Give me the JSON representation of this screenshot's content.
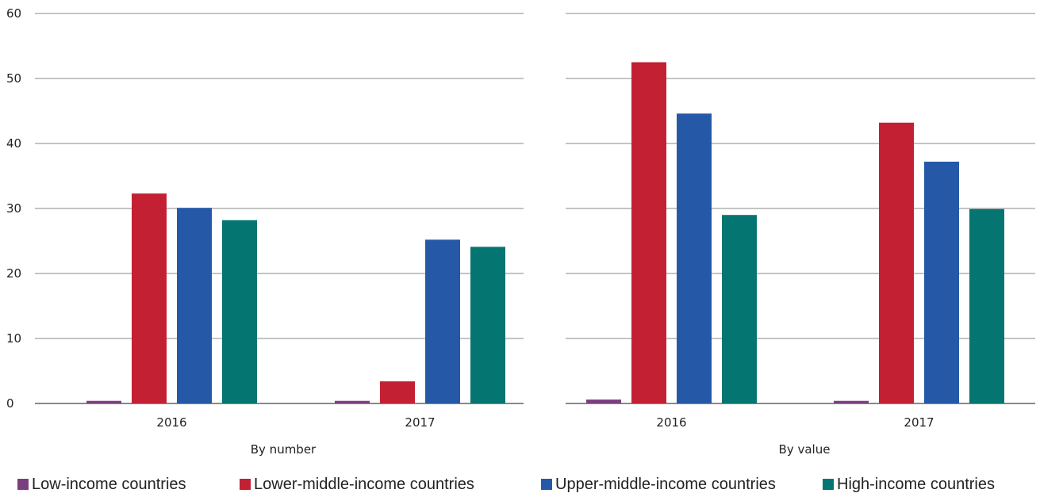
{
  "chart_data": {
    "type": "bar",
    "ylim": [
      0,
      60
    ],
    "yticks": [
      "0",
      "10",
      "20",
      "30",
      "40",
      "50",
      "60"
    ],
    "categories": [
      "2016",
      "2017"
    ],
    "colors": {
      "Low-income countries": "#7a3f7f",
      "Lower-middle-income countries": "#c32034",
      "Upper-middle-income countries": "#2559a7",
      "High-income countries": "#057571"
    },
    "panels": [
      {
        "label": "By number",
        "series": [
          {
            "name": "Low-income countries",
            "values": [
              0.4,
              0.4
            ]
          },
          {
            "name": "Lower-middle-income countries",
            "values": [
              32.3,
              3.4
            ]
          },
          {
            "name": "Upper-middle-income countries",
            "values": [
              30.1,
              25.2
            ]
          },
          {
            "name": "High-income countries",
            "values": [
              28.2,
              24.1
            ]
          }
        ]
      },
      {
        "label": "By value",
        "series": [
          {
            "name": "Low-income countries",
            "values": [
              0.6,
              0.4
            ]
          },
          {
            "name": "Lower-middle-income countries",
            "values": [
              52.5,
              43.2
            ]
          },
          {
            "name": "Upper-middle-income countries",
            "values": [
              44.6,
              37.2
            ]
          },
          {
            "name": "High-income countries",
            "values": [
              29.0,
              29.9
            ]
          }
        ]
      }
    ],
    "legend": [
      "Low-income countries",
      "Lower-middle-income countries",
      "Upper-middle-income countries",
      "High-income countries"
    ]
  }
}
